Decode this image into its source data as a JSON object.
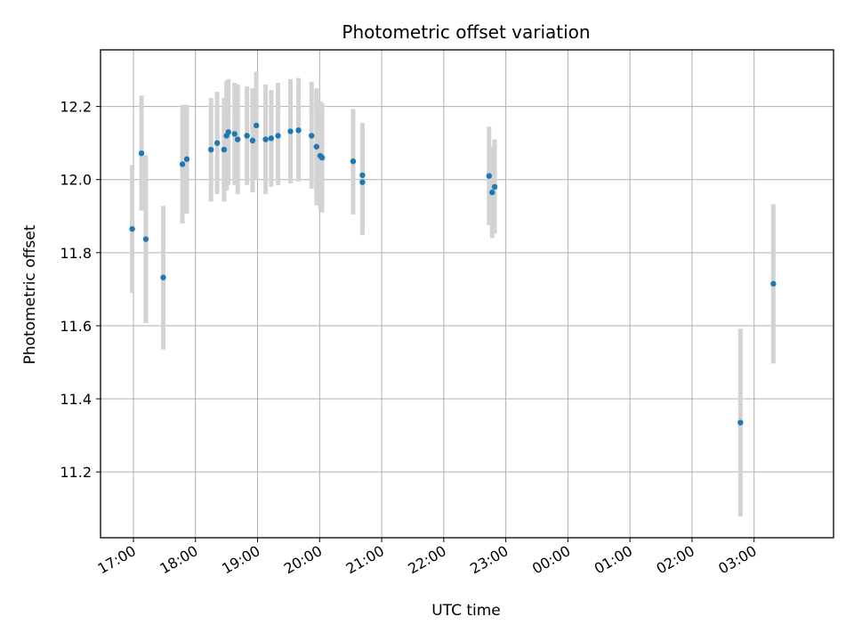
{
  "chart_data": {
    "type": "scatter",
    "title": "Photometric offset variation",
    "xlabel": "UTC time",
    "ylabel": "Photometric offset",
    "grid": true,
    "x_unit": "hours since 17:00 UTC",
    "xlim": [
      -0.53,
      11.28
    ],
    "ylim": [
      11.02,
      12.355
    ],
    "x_ticks": [
      {
        "x": 0,
        "label": "17:00"
      },
      {
        "x": 1,
        "label": "18:00"
      },
      {
        "x": 2,
        "label": "19:00"
      },
      {
        "x": 3,
        "label": "20:00"
      },
      {
        "x": 4,
        "label": "21:00"
      },
      {
        "x": 5,
        "label": "22:00"
      },
      {
        "x": 6,
        "label": "23:00"
      },
      {
        "x": 7,
        "label": "00:00"
      },
      {
        "x": 8,
        "label": "01:00"
      },
      {
        "x": 9,
        "label": "02:00"
      },
      {
        "x": 10,
        "label": "03:00"
      }
    ],
    "y_ticks": [
      {
        "y": 11.2,
        "label": "11.2"
      },
      {
        "y": 11.4,
        "label": "11.4"
      },
      {
        "y": 11.6,
        "label": "11.6"
      },
      {
        "y": 11.8,
        "label": "11.8"
      },
      {
        "y": 12.0,
        "label": "12.0"
      },
      {
        "y": 12.2,
        "label": "12.2"
      }
    ],
    "marker_color": "#1f77b4",
    "errorbar_color": "#d3d3d3",
    "points": [
      {
        "x": -0.02,
        "y": 11.865,
        "lo": 11.69,
        "hi": 12.04
      },
      {
        "x": 0.13,
        "y": 12.072,
        "lo": 11.915,
        "hi": 12.23
      },
      {
        "x": 0.2,
        "y": 11.837,
        "lo": 11.607,
        "hi": 12.067
      },
      {
        "x": 0.48,
        "y": 11.732,
        "lo": 11.535,
        "hi": 11.928
      },
      {
        "x": 0.79,
        "y": 12.042,
        "lo": 11.88,
        "hi": 12.205
      },
      {
        "x": 0.86,
        "y": 12.056,
        "lo": 11.907,
        "hi": 12.205
      },
      {
        "x": 1.25,
        "y": 12.082,
        "lo": 11.94,
        "hi": 12.223
      },
      {
        "x": 1.35,
        "y": 12.1,
        "lo": 11.96,
        "hi": 12.24
      },
      {
        "x": 1.46,
        "y": 12.082,
        "lo": 11.94,
        "hi": 12.223
      },
      {
        "x": 1.5,
        "y": 12.12,
        "lo": 11.97,
        "hi": 12.27
      },
      {
        "x": 1.53,
        "y": 12.13,
        "lo": 11.985,
        "hi": 12.275
      },
      {
        "x": 1.63,
        "y": 12.125,
        "lo": 11.985,
        "hi": 12.265
      },
      {
        "x": 1.68,
        "y": 12.11,
        "lo": 11.96,
        "hi": 12.26
      },
      {
        "x": 1.83,
        "y": 12.12,
        "lo": 11.985,
        "hi": 12.255
      },
      {
        "x": 1.92,
        "y": 12.107,
        "lo": 11.965,
        "hi": 12.25
      },
      {
        "x": 1.98,
        "y": 12.148,
        "lo": 12.0,
        "hi": 12.295
      },
      {
        "x": 2.13,
        "y": 12.11,
        "lo": 11.96,
        "hi": 12.26
      },
      {
        "x": 2.22,
        "y": 12.113,
        "lo": 11.98,
        "hi": 12.245
      },
      {
        "x": 2.33,
        "y": 12.12,
        "lo": 11.985,
        "hi": 12.265
      },
      {
        "x": 2.53,
        "y": 12.132,
        "lo": 11.99,
        "hi": 12.275
      },
      {
        "x": 2.66,
        "y": 12.135,
        "lo": 11.995,
        "hi": 12.278
      },
      {
        "x": 2.87,
        "y": 12.12,
        "lo": 11.975,
        "hi": 12.268
      },
      {
        "x": 2.95,
        "y": 12.09,
        "lo": 11.93,
        "hi": 12.25
      },
      {
        "x": 3.01,
        "y": 12.065,
        "lo": 11.92,
        "hi": 12.215
      },
      {
        "x": 3.04,
        "y": 12.06,
        "lo": 11.91,
        "hi": 12.21
      },
      {
        "x": 3.54,
        "y": 12.05,
        "lo": 11.905,
        "hi": 12.193
      },
      {
        "x": 3.69,
        "y": 12.012,
        "lo": 11.87,
        "hi": 12.155
      },
      {
        "x": 3.69,
        "y": 11.993,
        "lo": 11.848,
        "hi": 12.138
      },
      {
        "x": 5.73,
        "y": 12.01,
        "lo": 11.875,
        "hi": 12.145
      },
      {
        "x": 5.78,
        "y": 11.965,
        "lo": 11.84,
        "hi": 12.09
      },
      {
        "x": 5.82,
        "y": 11.98,
        "lo": 11.852,
        "hi": 12.11
      },
      {
        "x": 9.78,
        "y": 11.335,
        "lo": 11.078,
        "hi": 11.592
      },
      {
        "x": 10.31,
        "y": 11.715,
        "lo": 11.497,
        "hi": 11.933
      }
    ]
  }
}
